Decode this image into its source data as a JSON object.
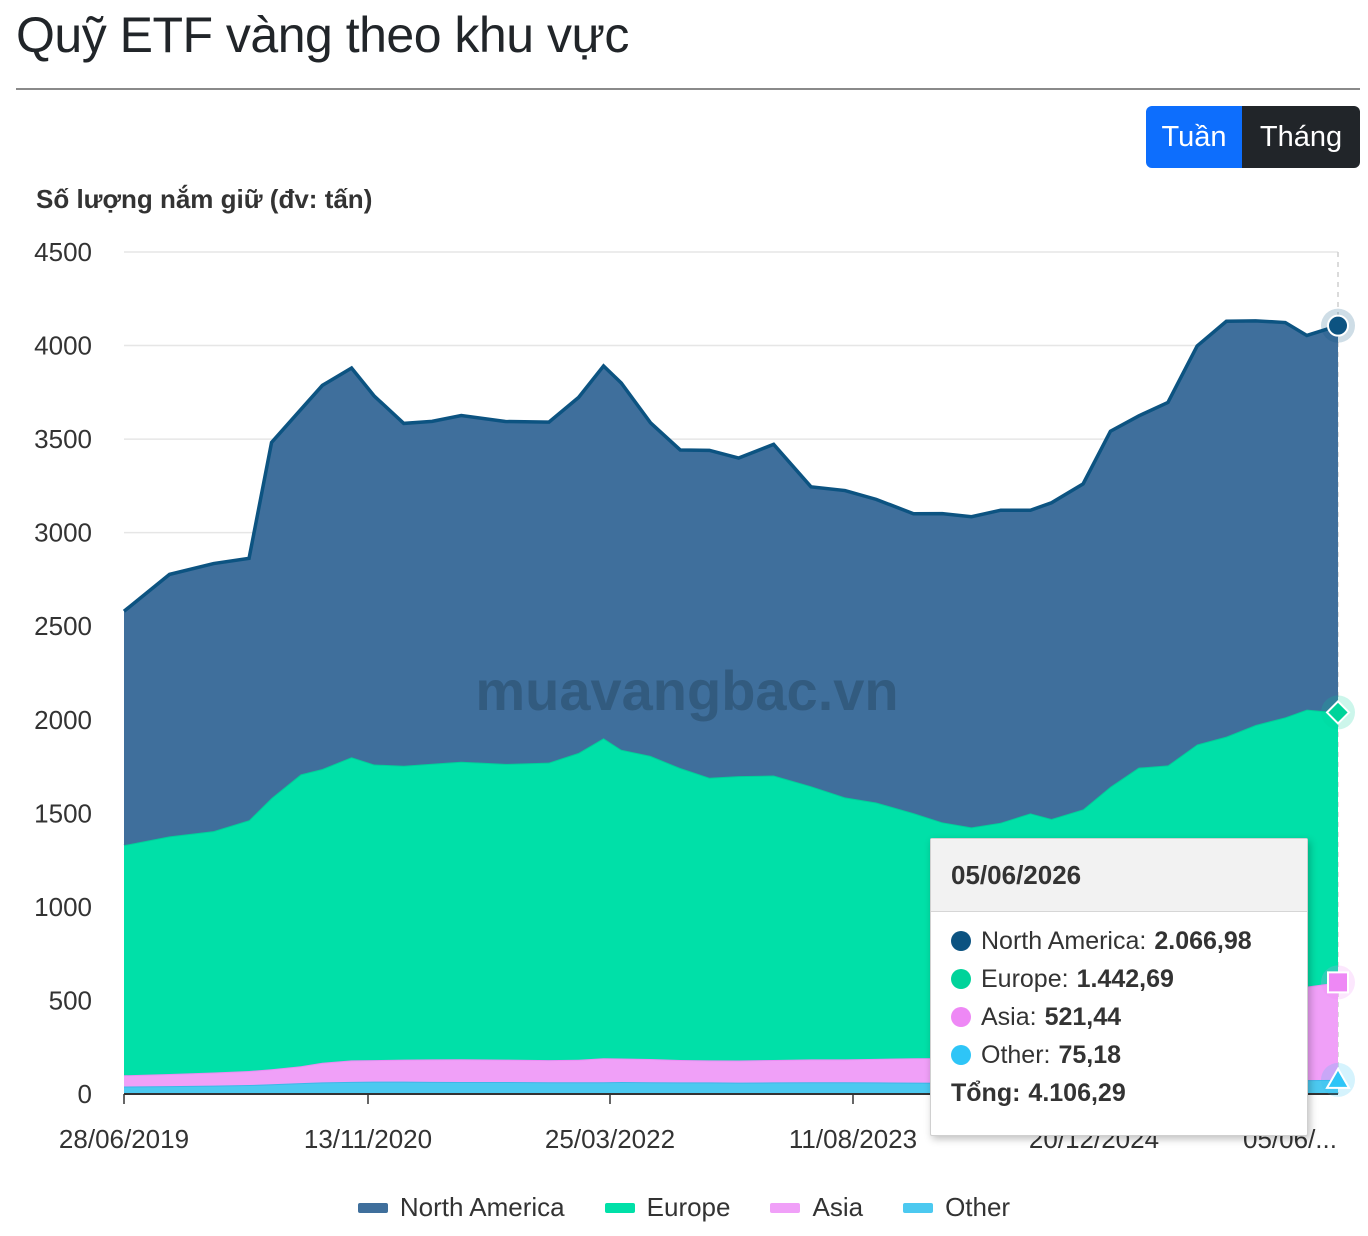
{
  "page": {
    "title": "Quỹ ETF vàng theo khu vực"
  },
  "toggle": {
    "week_label": "Tuần",
    "month_label": "Tháng"
  },
  "watermark": "muavangbac.vn",
  "colors": {
    "north_america": "#3f6f9c",
    "north_america_line": "#0c5381",
    "europe": "#00e0a8",
    "asia": "#f0a0f8",
    "other": "#4cc9f0",
    "btn_active": "#0d6efd",
    "btn_dark": "#212529"
  },
  "tooltip": {
    "date": "05/06/2026",
    "rows": [
      {
        "label": "North America:",
        "value": "2.066,98",
        "color": "#0c5381"
      },
      {
        "label": "Europe:",
        "value": "1.442,69",
        "color": "#00d39a"
      },
      {
        "label": "Asia:",
        "value": "521,44",
        "color": "#ee88f5"
      },
      {
        "label": "Other:",
        "value": "75,18",
        "color": "#2ec5f7"
      }
    ],
    "total_label": "Tổng:",
    "total_value": "4.106,29"
  },
  "chart_data": {
    "type": "area",
    "stacked": true,
    "title": "",
    "ylabel": "Số lượng nắm giữ (đv: tấn)",
    "xlabel": "",
    "ylim": [
      0,
      4500
    ],
    "yticks": [
      0,
      500,
      1000,
      1500,
      2000,
      2500,
      3000,
      3500,
      4000,
      4500
    ],
    "xtick_labels": [
      "28/06/2019",
      "13/11/2020",
      "25/03/2022",
      "11/08/2023",
      "20/12/2024",
      "05/06/..."
    ],
    "grid": true,
    "legend_position": "bottom",
    "x": [
      "2019-06-28",
      "2019-10-01",
      "2020-01-01",
      "2020-03-15",
      "2020-05-01",
      "2020-07-01",
      "2020-08-15",
      "2020-10-15",
      "2020-12-01",
      "2021-02-01",
      "2021-04-01",
      "2021-06-01",
      "2021-09-01",
      "2021-12-01",
      "2022-02-01",
      "2022-03-25",
      "2022-05-01",
      "2022-07-01",
      "2022-09-01",
      "2022-11-01",
      "2023-01-01",
      "2023-03-15",
      "2023-06-01",
      "2023-08-11",
      "2023-10-15",
      "2024-01-01",
      "2024-03-01",
      "2024-05-01",
      "2024-07-01",
      "2024-09-01",
      "2024-10-15",
      "2024-12-20",
      "2025-02-15",
      "2025-04-15",
      "2025-06-15",
      "2025-08-15",
      "2025-10-15",
      "2025-12-15",
      "2026-02-15",
      "2026-04-01",
      "2026-06-05"
    ],
    "series": [
      {
        "name": "Other",
        "values": [
          40,
          42,
          45,
          48,
          52,
          58,
          62,
          65,
          66,
          66,
          65,
          64,
          64,
          63,
          63,
          63,
          64,
          63,
          62,
          62,
          61,
          62,
          63,
          63,
          62,
          61,
          60,
          60,
          60,
          60,
          60,
          61,
          62,
          64,
          66,
          68,
          70,
          72,
          73,
          74,
          75.18
        ]
      },
      {
        "name": "Asia",
        "values": [
          60,
          65,
          70,
          75,
          80,
          90,
          105,
          115,
          115,
          118,
          120,
          122,
          120,
          118,
          120,
          128,
          126,
          124,
          120,
          118,
          118,
          120,
          122,
          122,
          126,
          130,
          132,
          135,
          140,
          160,
          180,
          200,
          230,
          260,
          300,
          340,
          380,
          420,
          470,
          500,
          521.44
        ]
      },
      {
        "name": "Europe",
        "values": [
          1230,
          1270,
          1290,
          1340,
          1450,
          1560,
          1570,
          1620,
          1580,
          1570,
          1580,
          1590,
          1580,
          1590,
          1640,
          1710,
          1650,
          1620,
          1560,
          1510,
          1520,
          1520,
          1460,
          1400,
          1370,
          1310,
          1260,
          1230,
          1250,
          1280,
          1230,
          1260,
          1350,
          1420,
          1390,
          1460,
          1460,
          1480,
          1470,
          1480,
          1442.69
        ]
      },
      {
        "name": "North America",
        "values": [
          1250,
          1400,
          1430,
          1400,
          1900,
          1950,
          2050,
          2080,
          1970,
          1830,
          1830,
          1850,
          1830,
          1820,
          1900,
          1990,
          1960,
          1780,
          1700,
          1750,
          1700,
          1770,
          1600,
          1640,
          1620,
          1600,
          1650,
          1660,
          1670,
          1620,
          1690,
          1740,
          1900,
          1880,
          1940,
          2130,
          2220,
          2160,
          2110,
          2000,
          2066.98
        ]
      }
    ],
    "totals_by_x": [
      2580,
      2777,
      2835,
      2863,
      3482,
      3658,
      3787,
      3880,
      3731,
      3584,
      3595,
      3626,
      3594,
      3591,
      3723,
      3891,
      3800,
      3587,
      3442,
      3440,
      3399,
      3472,
      3245,
      3225,
      3178,
      3101,
      3102,
      3085,
      3120,
      3120,
      3160,
      3261,
      3542,
      3624,
      3696,
      3998,
      4130,
      4132,
      4123,
      4054,
      4106.29
    ]
  },
  "legend": [
    {
      "label": "North America",
      "color": "#3f6f9c"
    },
    {
      "label": "Europe",
      "color": "#00e0a8"
    },
    {
      "label": "Asia",
      "color": "#f0a0f8"
    },
    {
      "label": "Other",
      "color": "#4cc9f0"
    }
  ]
}
